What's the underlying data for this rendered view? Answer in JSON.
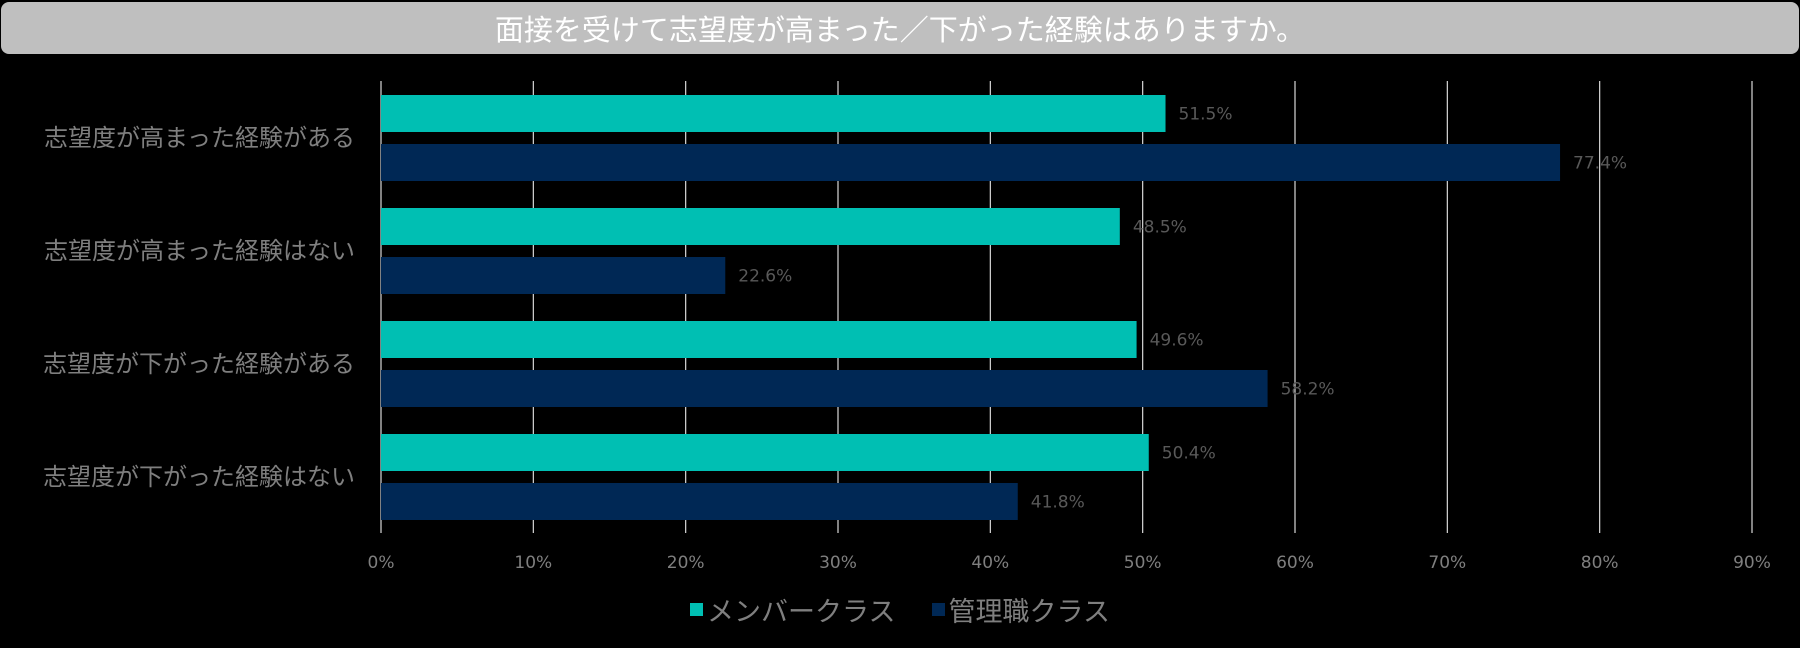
{
  "chart_data": {
    "type": "bar",
    "orientation": "horizontal",
    "title": "面接を受けて志望度が高まった／下がった経験はありますか。",
    "categories": [
      "志望度が高まった経験がある",
      "志望度が高まった経験はない",
      "志望度が下がった経験がある",
      "志望度が下がった経験はない"
    ],
    "series": [
      {
        "name": "メンバークラス",
        "color": "#00bfb3",
        "values": [
          51.5,
          48.5,
          49.6,
          50.4
        ]
      },
      {
        "name": "管理職クラス",
        "color": "#002855",
        "values": [
          77.4,
          22.6,
          58.2,
          41.8
        ]
      }
    ],
    "data_labels": [
      [
        "51.5%",
        "48.5%",
        "49.6%",
        "50.4%"
      ],
      [
        "77.4%",
        "22.6%",
        "58.2%",
        "41.8%"
      ]
    ],
    "xlim": [
      0,
      90
    ],
    "xticks": [
      "0%",
      "10%",
      "20%",
      "30%",
      "40%",
      "50%",
      "60%",
      "70%",
      "80%",
      "90%"
    ],
    "grid": true,
    "legend": "bottom"
  }
}
